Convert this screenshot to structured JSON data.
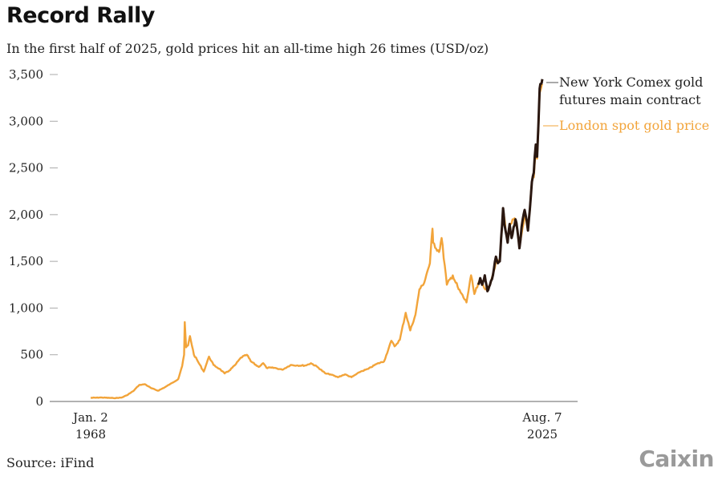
{
  "chart_data": {
    "type": "line",
    "title": "Record Rally",
    "subtitle": "In the first half of 2025, gold prices hit an all-time high 26 times (USD/oz)",
    "source": "Source: iFind",
    "logo": "Caixin",
    "ylim": [
      0,
      3500
    ],
    "yticks": [
      0,
      500,
      1000,
      1500,
      2000,
      2500,
      3000,
      3500
    ],
    "ytick_labels": [
      "0",
      "500",
      "1,000",
      "1,500",
      "2,000",
      "2,500",
      "3,000",
      "3,500"
    ],
    "xlim": [
      "1968-01",
      "2025-08"
    ],
    "xtick_labels": [
      {
        "date": "1968-01",
        "line1": "Jan. 2",
        "line2": "1968"
      },
      {
        "date": "2025-08",
        "line1": "Aug. 7",
        "line2": "2025"
      }
    ],
    "grid": false,
    "series": [
      {
        "name": "London spot gold price",
        "color": "#f2a43a",
        "x": [
          "1968-01",
          "1969-06",
          "1970-12",
          "1971-12",
          "1972-08",
          "1973-06",
          "1974-03",
          "1974-12",
          "1975-09",
          "1976-08",
          "1977-06",
          "1978-06",
          "1979-03",
          "1979-09",
          "1979-12",
          "1980-01",
          "1980-03",
          "1980-06",
          "1980-09",
          "1981-03",
          "1981-09",
          "1982-06",
          "1983-02",
          "1983-09",
          "1984-06",
          "1985-02",
          "1985-09",
          "1986-06",
          "1987-03",
          "1987-12",
          "1988-06",
          "1989-06",
          "1990-01",
          "1990-06",
          "1991-06",
          "1992-06",
          "1993-07",
          "1994-06",
          "1995-06",
          "1996-02",
          "1996-12",
          "1997-12",
          "1998-08",
          "1999-07",
          "2000-06",
          "2001-04",
          "2002-06",
          "2003-06",
          "2004-06",
          "2005-06",
          "2006-05",
          "2006-10",
          "2007-06",
          "2008-03",
          "2008-10",
          "2009-06",
          "2009-12",
          "2010-06",
          "2010-12",
          "2011-04",
          "2011-08",
          "2011-09",
          "2012-06",
          "2012-10",
          "2013-06",
          "2014-03",
          "2014-12",
          "2015-12",
          "2016-07",
          "2016-12",
          "2017-09",
          "2018-08",
          "2019-06",
          "2019-09",
          "2020-03",
          "2020-08",
          "2021-03",
          "2021-06",
          "2022-03",
          "2022-09",
          "2023-05",
          "2023-10",
          "2024-01",
          "2024-04",
          "2024-07",
          "2024-10",
          "2024-12",
          "2025-02",
          "2025-04",
          "2025-06",
          "2025-08"
        ],
        "values": [
          39,
          42,
          36,
          41,
          65,
          110,
          175,
          185,
          145,
          115,
          150,
          200,
          240,
          380,
          500,
          850,
          580,
          600,
          700,
          500,
          430,
          320,
          480,
          390,
          350,
          300,
          330,
          390,
          470,
          500,
          430,
          370,
          410,
          360,
          360,
          340,
          390,
          385,
          385,
          410,
          370,
          300,
          290,
          260,
          290,
          260,
          320,
          350,
          400,
          430,
          650,
          590,
          660,
          950,
          760,
          930,
          1200,
          1250,
          1390,
          1480,
          1850,
          1700,
          1600,
          1750,
          1250,
          1350,
          1200,
          1060,
          1350,
          1150,
          1300,
          1180,
          1400,
          1500,
          1500,
          2050,
          1700,
          1900,
          1950,
          1650,
          2000,
          1830,
          2050,
          2350,
          2400,
          2700,
          2600,
          2900,
          3300,
          3350,
          3400
        ]
      },
      {
        "name": "New York Comex gold futures main contract",
        "color": "#2a1710",
        "x": [
          "2017-06",
          "2017-09",
          "2017-12",
          "2018-04",
          "2018-08",
          "2018-12",
          "2019-03",
          "2019-06",
          "2019-09",
          "2019-12",
          "2020-03",
          "2020-05",
          "2020-08",
          "2020-10",
          "2021-03",
          "2021-06",
          "2021-09",
          "2022-03",
          "2022-06",
          "2022-09",
          "2023-02",
          "2023-05",
          "2023-10",
          "2024-01",
          "2024-04",
          "2024-07",
          "2024-10",
          "2024-12",
          "2025-02",
          "2025-04",
          "2025-06",
          "2025-08"
        ],
        "values": [
          1250,
          1320,
          1250,
          1350,
          1180,
          1250,
          1310,
          1420,
          1550,
          1480,
          1500,
          1750,
          2070,
          1900,
          1700,
          1900,
          1750,
          1950,
          1830,
          1640,
          1950,
          2050,
          1830,
          2060,
          2350,
          2450,
          2750,
          2620,
          2950,
          3350,
          3400,
          3450
        ]
      }
    ]
  }
}
